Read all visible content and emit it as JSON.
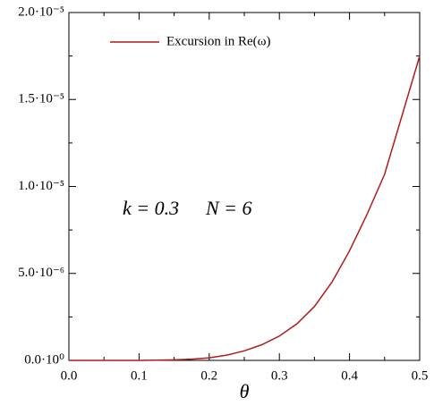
{
  "chart_data": {
    "type": "line",
    "x_label": "θ",
    "annotations": [
      "k = 0.3",
      "N = 6"
    ],
    "x": [
      0,
      0.05,
      0.1,
      0.125,
      0.15,
      0.175,
      0.2,
      0.225,
      0.25,
      0.275,
      0.3,
      0.325,
      0.35,
      0.375,
      0.4,
      0.425,
      0.45,
      0.475,
      0.5
    ],
    "series": [
      {
        "name": "Excursion in Re(ω)",
        "color": "#b01c1c",
        "values": [
          0,
          0,
          3e-09,
          1e-08,
          3e-08,
          7e-08,
          1.5e-07,
          3e-07,
          5.5e-07,
          9e-07,
          1.4e-06,
          2.1e-06,
          3.1e-06,
          4.5e-06,
          6.3e-06,
          8.4e-06,
          1.07e-05,
          1.41e-05,
          1.75e-05
        ]
      }
    ],
    "xlim": [
      0,
      0.5
    ],
    "ylim": [
      0,
      2e-05
    ],
    "xticks": [
      {
        "value": 0,
        "label": "0.0"
      },
      0.1,
      0.2,
      0.3,
      0.4,
      0.5
    ],
    "xminorticks": [
      0.05,
      0.15,
      0.25,
      0.35,
      0.45
    ],
    "yticks": [
      {
        "value": 0,
        "label": "0.0·10⁰"
      },
      {
        "value": 5e-06,
        "label": "5.0·10⁻⁶"
      },
      {
        "value": 1e-05,
        "label": "1.0·10⁻⁵"
      },
      {
        "value": 1.5e-05,
        "label": "1.5·10⁻⁵"
      },
      {
        "value": 2e-05,
        "label": "2.0·10⁻⁵"
      }
    ],
    "yminorticks": [
      2.5e-06,
      7.5e-06,
      1.25e-05,
      1.75e-05
    ],
    "legend": "upper left"
  }
}
